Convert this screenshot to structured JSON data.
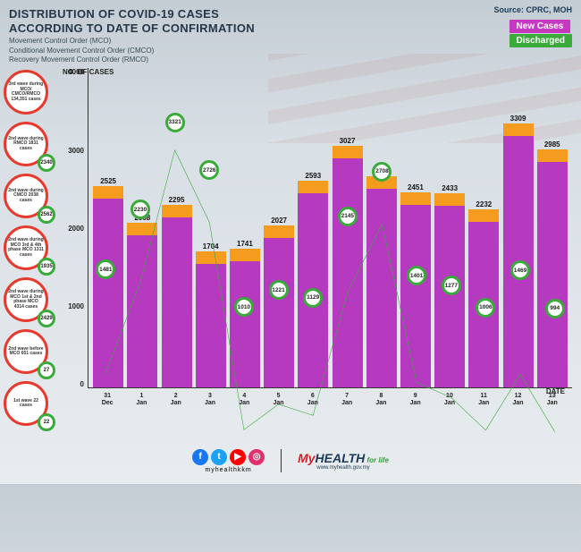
{
  "header": {
    "title_line1": "DISTRIBUTION OF COVID-19 CASES",
    "title_line2": "ACCORDING TO DATE OF CONFIRMATION",
    "sub1": "Movement Control Order (MCO)",
    "sub2": "Conditional Movement Control Order (CMCO)",
    "sub3": "Recovery Movement Control Order (RMCO)",
    "source": "Source: CPRC, MOH",
    "legend_new": "New Cases",
    "legend_discharged": "Discharged",
    "legend_new_color": "#c638c0",
    "legend_discharged_color": "#3aaa3a"
  },
  "chart": {
    "type": "bar+line",
    "y_title": "NO. OF CASES",
    "x_title": "DATE",
    "ylim_max": 4000,
    "yticks": [
      "4000",
      "3000",
      "2000",
      "1000",
      "0"
    ],
    "bar_color": "#b63ac0",
    "bar_top_color": "#f59b1d",
    "line_color": "#3aaa3a",
    "marker_border": "#3aaa3a",
    "background_color": "transparent",
    "categories": [
      "31 Dec",
      "1 Jan",
      "2 Jan",
      "3 Jan",
      "4 Jan",
      "5 Jan",
      "6 Jan",
      "7 Jan",
      "8 Jan",
      "9 Jan",
      "10 Jan",
      "11 Jan",
      "12 Jan",
      "13 Jan"
    ],
    "new_cases": [
      2525,
      2068,
      2295,
      1704,
      1741,
      2027,
      2593,
      3027,
      2643,
      2451,
      2433,
      2232,
      3309,
      2985
    ],
    "discharged": [
      1481,
      2230,
      3321,
      2726,
      1010,
      1221,
      1129,
      2145,
      2708,
      1401,
      1277,
      1006,
      1469,
      994
    ]
  },
  "waves": [
    {
      "text": "3rd wave during MCO/ CMCO/RMCO 134,351 cases",
      "small": null
    },
    {
      "text": "2nd wave during RMCO 1831 cases",
      "small": "2340"
    },
    {
      "text": "2nd wave during CMCO 2038 cases",
      "small": "2562"
    },
    {
      "text": "2nd wave during MCO 3rd & 4th phase MCO 1311 cases",
      "small": "1935"
    },
    {
      "text": "2nd wave during MCO 1st & 2nd phase MCO 4314 cases",
      "small": "2429"
    },
    {
      "text": "2nd wave before MCO 651 cases",
      "small": "27"
    },
    {
      "text": "1st wave 22 cases",
      "small": "22"
    }
  ],
  "footer": {
    "handle": "myhealthkkm",
    "url": "www.myhealth.gov.my",
    "brand_my": "My",
    "brand_health": "HEALTH",
    "brand_forlife": " for life",
    "socials": [
      {
        "name": "facebook",
        "glyph": "f",
        "color": "#1877f2"
      },
      {
        "name": "twitter",
        "glyph": "t",
        "color": "#1da1f2"
      },
      {
        "name": "youtube",
        "glyph": "▶",
        "color": "#ff0000"
      },
      {
        "name": "instagram",
        "glyph": "◎",
        "color": "#e1306c"
      }
    ]
  }
}
